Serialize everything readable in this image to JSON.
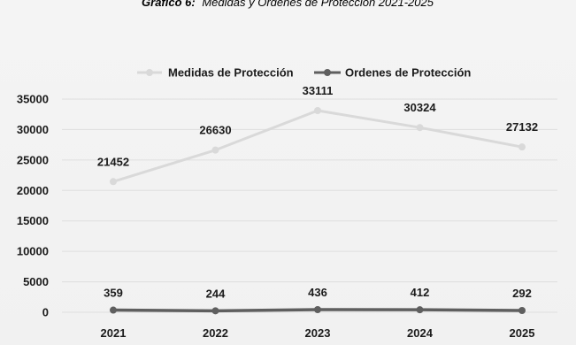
{
  "chart_data": {
    "type": "line",
    "title_bold": "Gráfico 6:",
    "title_rest": "Medidas y Órdenes de Protección 2021-2025",
    "categories": [
      "2021",
      "2022",
      "2023",
      "2024",
      "2025"
    ],
    "ylim": [
      0,
      35000
    ],
    "yticks": [
      0,
      5000,
      10000,
      15000,
      20000,
      25000,
      30000,
      35000
    ],
    "grid": true,
    "legend_position": "top",
    "xlabel": "",
    "ylabel": "",
    "series": [
      {
        "name": "Medidas de Protección",
        "values": [
          21452,
          26630,
          33111,
          30324,
          27132
        ],
        "labels": [
          "21452",
          "26630",
          "33111",
          "30324",
          "27132"
        ],
        "color": "#d9d9d9"
      },
      {
        "name": "Ordenes de Protección",
        "values": [
          359,
          244,
          436,
          412,
          292
        ],
        "labels": [
          "359",
          "244",
          "436",
          "412",
          "292"
        ],
        "color": "#5f5f5f"
      }
    ]
  }
}
